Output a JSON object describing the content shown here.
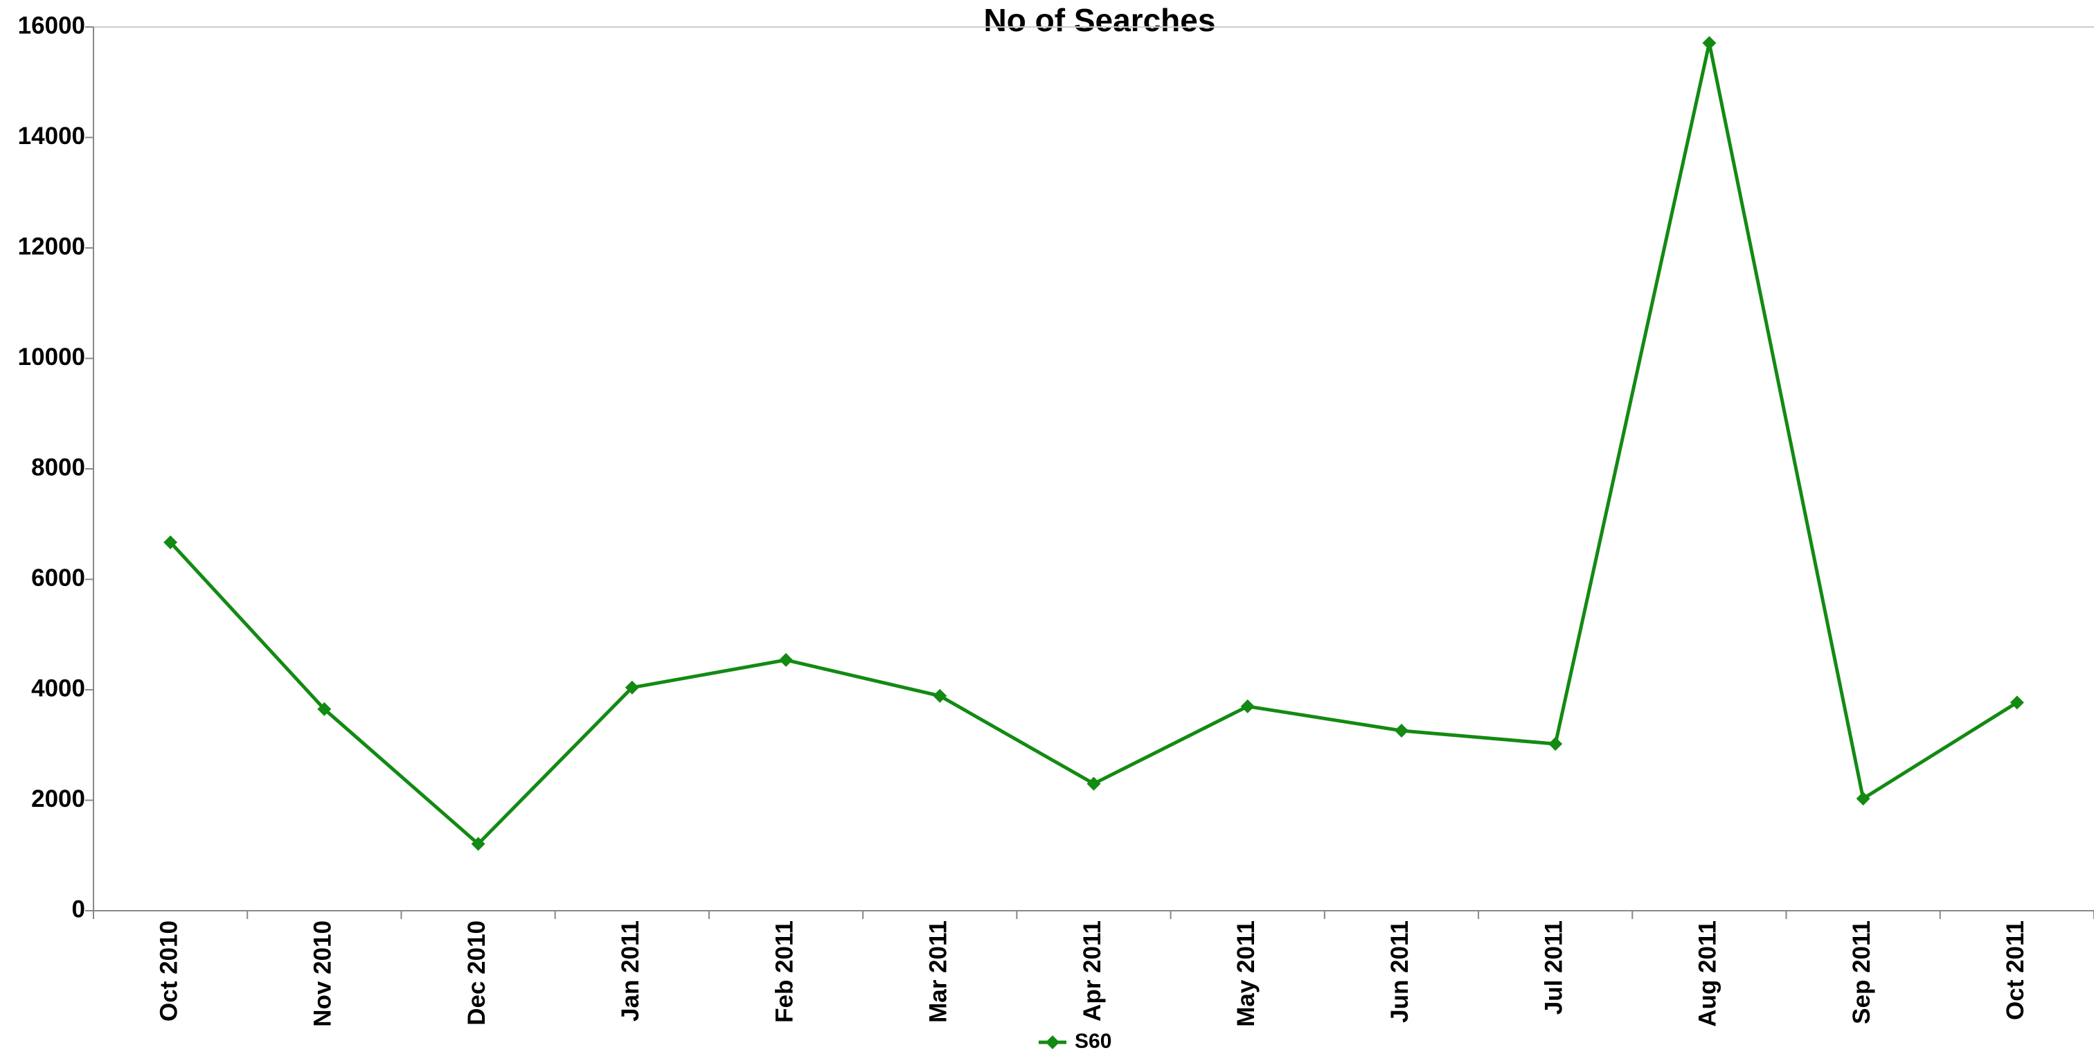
{
  "chart_data": {
    "type": "line",
    "title": "No of Searches",
    "categories": [
      "Oct 2010",
      "Nov 2010",
      "Dec 2010",
      "Jan 2011",
      "Feb 2011",
      "Mar 2011",
      "Apr 2011",
      "May 2011",
      "Jun 2011",
      "Jul 2011",
      "Aug 2011",
      "Sep 2011",
      "Oct 2011"
    ],
    "series": [
      {
        "name": "S60",
        "color": "#138a13",
        "values": [
          6670,
          3650,
          1210,
          4040,
          4540,
          3890,
          2300,
          3700,
          3260,
          3020,
          15710,
          2030,
          3770
        ]
      }
    ],
    "ylim": [
      0,
      16000
    ],
    "yticks": [
      0,
      2000,
      4000,
      6000,
      8000,
      10000,
      12000,
      14000,
      16000
    ],
    "grid": false,
    "legend": "bottom"
  }
}
